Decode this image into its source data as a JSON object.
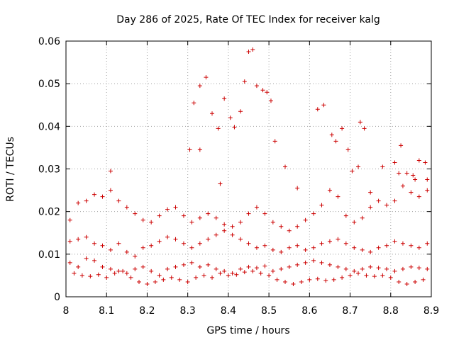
{
  "chart_data": {
    "type": "scatter",
    "title": "Day 286 of 2025, Rate Of TEC Index for receiver kalg",
    "xlabel": "GPS time / hours",
    "ylabel": "ROTI / TECUs",
    "xlim": [
      8.0,
      8.9
    ],
    "ylim": [
      0.0,
      0.06
    ],
    "xticks": [
      "8",
      "8.1",
      "8.2",
      "8.3",
      "8.4",
      "8.5",
      "8.6",
      "8.7",
      "8.8",
      "8.9"
    ],
    "xtick_values": [
      8.0,
      8.1,
      8.2,
      8.3,
      8.4,
      8.5,
      8.6,
      8.7,
      8.8,
      8.9
    ],
    "yticks": [
      "0",
      "0.01",
      "0.02",
      "0.03",
      "0.04",
      "0.05",
      "0.06"
    ],
    "ytick_values": [
      0.0,
      0.01,
      0.02,
      0.03,
      0.04,
      0.05,
      0.06
    ],
    "grid": true,
    "marker_color": "#cc0000",
    "marker": "plus",
    "series": [
      {
        "x": [
          8.02,
          8.04,
          8.06,
          8.08,
          8.1,
          8.12,
          8.14,
          8.16,
          8.18,
          8.2,
          8.22,
          8.24,
          8.26,
          8.28,
          8.3,
          8.32,
          8.34,
          8.36,
          8.38,
          8.4,
          8.42,
          8.44,
          8.46,
          8.48,
          8.5,
          8.52,
          8.54,
          8.56,
          8.58,
          8.6,
          8.62,
          8.64,
          8.66,
          8.68,
          8.7,
          8.72,
          8.74,
          8.76,
          8.78,
          8.8,
          8.82,
          8.84,
          8.86,
          8.88
        ],
        "y": [
          0.0055,
          0.005,
          0.0048,
          0.0052,
          0.0045,
          0.0055,
          0.006,
          0.0045,
          0.0035,
          0.003,
          0.0035,
          0.004,
          0.0045,
          0.004,
          0.0035,
          0.0045,
          0.005,
          0.0045,
          0.0055,
          0.005,
          0.0052,
          0.0058,
          0.006,
          0.0055,
          0.005,
          0.004,
          0.0035,
          0.003,
          0.0035,
          0.004,
          0.0042,
          0.0038,
          0.004,
          0.0045,
          0.005,
          0.0055,
          0.005,
          0.0048,
          0.005,
          0.0045,
          0.0035,
          0.003,
          0.0035,
          0.004
        ]
      },
      {
        "x": [
          8.01,
          8.03,
          8.05,
          8.07,
          8.09,
          8.11,
          8.13,
          8.15,
          8.17,
          8.19,
          8.21,
          8.23,
          8.25,
          8.27,
          8.29,
          8.31,
          8.33,
          8.35,
          8.37,
          8.39,
          8.41,
          8.43,
          8.45,
          8.47,
          8.49,
          8.51,
          8.53,
          8.55,
          8.57,
          8.59,
          8.61,
          8.63,
          8.65,
          8.67,
          8.69,
          8.71,
          8.73,
          8.75,
          8.77,
          8.79,
          8.81,
          8.83,
          8.85,
          8.87,
          8.89
        ],
        "y": [
          0.008,
          0.007,
          0.009,
          0.0085,
          0.007,
          0.0065,
          0.006,
          0.0055,
          0.0065,
          0.007,
          0.006,
          0.005,
          0.0065,
          0.007,
          0.0075,
          0.008,
          0.007,
          0.0075,
          0.0065,
          0.006,
          0.0055,
          0.0065,
          0.007,
          0.0068,
          0.0072,
          0.006,
          0.0065,
          0.007,
          0.0075,
          0.008,
          0.0085,
          0.008,
          0.0075,
          0.007,
          0.0065,
          0.006,
          0.0065,
          0.007,
          0.0068,
          0.0065,
          0.006,
          0.0065,
          0.007,
          0.0068,
          0.0065
        ]
      },
      {
        "x": [
          8.01,
          8.03,
          8.05,
          8.07,
          8.09,
          8.11,
          8.13,
          8.15,
          8.17,
          8.19,
          8.21,
          8.23,
          8.25,
          8.27,
          8.29,
          8.31,
          8.33,
          8.35,
          8.37,
          8.39,
          8.41,
          8.43,
          8.45,
          8.47,
          8.49,
          8.51,
          8.53,
          8.55,
          8.57,
          8.59,
          8.61,
          8.63,
          8.65,
          8.67,
          8.69,
          8.71,
          8.73,
          8.75,
          8.77,
          8.79,
          8.81,
          8.83,
          8.85,
          8.87,
          8.89
        ],
        "y": [
          0.013,
          0.0135,
          0.014,
          0.0125,
          0.012,
          0.011,
          0.0125,
          0.0105,
          0.0095,
          0.0115,
          0.012,
          0.013,
          0.014,
          0.0135,
          0.0125,
          0.0115,
          0.0125,
          0.0135,
          0.0145,
          0.0155,
          0.0145,
          0.0135,
          0.0125,
          0.0115,
          0.012,
          0.011,
          0.0105,
          0.0115,
          0.012,
          0.011,
          0.0115,
          0.0125,
          0.013,
          0.0135,
          0.0125,
          0.0115,
          0.011,
          0.0105,
          0.0115,
          0.012,
          0.013,
          0.0125,
          0.012,
          0.0115,
          0.0125
        ]
      },
      {
        "x": [
          8.01,
          8.03,
          8.05,
          8.07,
          8.09,
          8.11,
          8.13,
          8.15,
          8.17,
          8.19,
          8.21,
          8.23,
          8.25,
          8.27,
          8.29,
          8.31,
          8.33,
          8.35,
          8.37,
          8.39,
          8.41,
          8.43,
          8.45,
          8.47,
          8.49,
          8.51,
          8.53,
          8.55,
          8.57,
          8.59,
          8.61,
          8.63,
          8.65,
          8.67,
          8.69,
          8.71,
          8.73,
          8.75,
          8.77,
          8.79,
          8.81,
          8.83,
          8.85,
          8.87,
          8.89
        ],
        "y": [
          0.018,
          0.022,
          0.0225,
          0.024,
          0.0235,
          0.025,
          0.0225,
          0.021,
          0.0195,
          0.018,
          0.0175,
          0.019,
          0.0205,
          0.021,
          0.019,
          0.0175,
          0.0185,
          0.0195,
          0.0185,
          0.017,
          0.0165,
          0.0175,
          0.0195,
          0.021,
          0.0195,
          0.0175,
          0.0165,
          0.0155,
          0.0165,
          0.018,
          0.0195,
          0.0215,
          0.025,
          0.0235,
          0.019,
          0.0175,
          0.0185,
          0.021,
          0.0225,
          0.0215,
          0.0225,
          0.026,
          0.0245,
          0.0235,
          0.025
        ]
      },
      {
        "x": [
          8.305,
          8.315,
          8.33,
          8.345,
          8.36,
          8.375,
          8.39,
          8.405,
          8.415,
          8.43,
          8.44,
          8.45,
          8.46,
          8.47,
          8.485,
          8.495,
          8.505,
          8.515
        ],
        "y": [
          0.0345,
          0.0455,
          0.0495,
          0.0515,
          0.043,
          0.0395,
          0.0465,
          0.042,
          0.0398,
          0.0435,
          0.0505,
          0.0575,
          0.058,
          0.0495,
          0.0485,
          0.048,
          0.046,
          0.0365
        ]
      },
      {
        "x": [
          8.62,
          8.635,
          8.655,
          8.665,
          8.68,
          8.695,
          8.705,
          8.725,
          8.735,
          8.78,
          8.81,
          8.825,
          8.84,
          8.855,
          8.87,
          8.885
        ],
        "y": [
          0.044,
          0.045,
          0.038,
          0.0365,
          0.0395,
          0.0345,
          0.0295,
          0.041,
          0.0395,
          0.0305,
          0.0315,
          0.0355,
          0.029,
          0.0285,
          0.032,
          0.0315
        ]
      },
      {
        "x": [
          8.11,
          8.33,
          8.38,
          8.54,
          8.57,
          8.72,
          8.75,
          8.82,
          8.86,
          8.89
        ],
        "y": [
          0.0295,
          0.0345,
          0.0265,
          0.0305,
          0.0255,
          0.0305,
          0.0245,
          0.029,
          0.0275,
          0.0275
        ]
      }
    ]
  }
}
